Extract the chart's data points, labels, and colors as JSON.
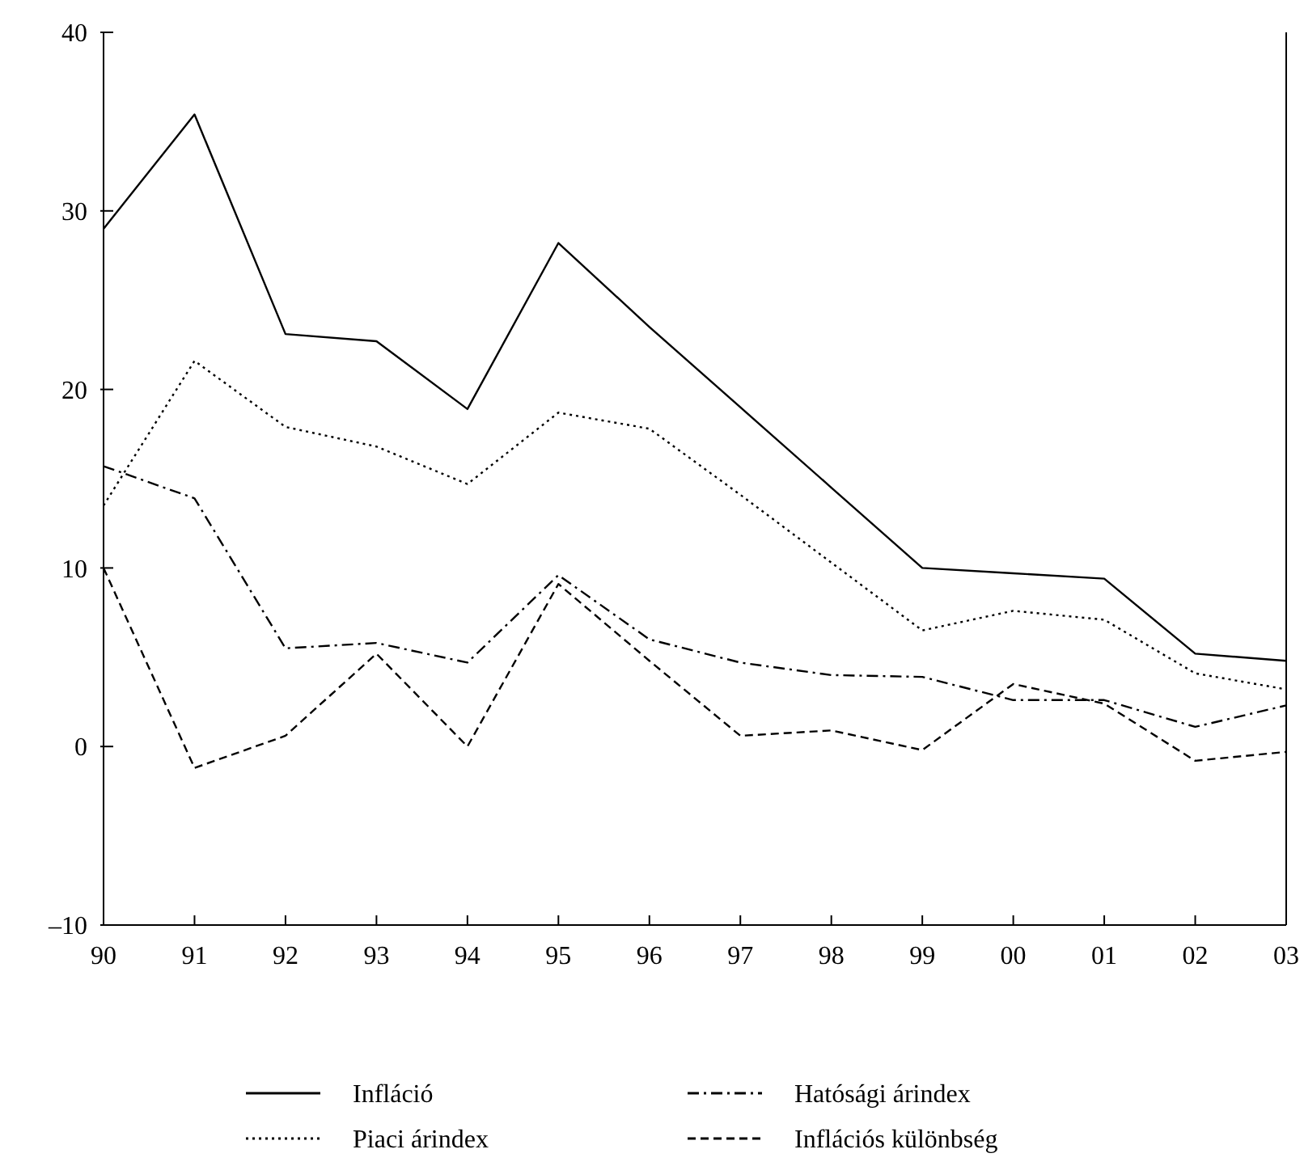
{
  "chart_data": {
    "type": "line",
    "categories": [
      "90",
      "91",
      "92",
      "93",
      "94",
      "95",
      "96",
      "97",
      "98",
      "99",
      "00",
      "01",
      "02",
      "03"
    ],
    "ylim": [
      -10,
      40
    ],
    "yticks": [
      {
        "value": -10,
        "label": "–10"
      },
      0,
      10,
      20,
      30,
      40
    ],
    "legend": "bottom",
    "grid": false,
    "series": [
      {
        "name": "Infláció",
        "color": "#000000",
        "line_style": "solid",
        "values": [
          29.0,
          35.4,
          23.1,
          22.7,
          18.9,
          28.2,
          23.5,
          19.0,
          14.5,
          10.0,
          9.7,
          9.4,
          5.2,
          4.8
        ]
      },
      {
        "name": "Piaci árindex",
        "color": "#000000",
        "line_style": "dotted",
        "values": [
          13.5,
          21.6,
          17.9,
          16.8,
          14.7,
          18.7,
          17.8,
          14.1,
          10.3,
          6.5,
          7.6,
          7.1,
          4.1,
          3.2
        ]
      },
      {
        "name": "Hatósági árindex",
        "color": "#000000",
        "line_style": "dashdot",
        "values": [
          15.7,
          13.9,
          5.5,
          5.8,
          4.7,
          9.6,
          6.0,
          4.7,
          4.0,
          3.9,
          2.6,
          2.6,
          1.1,
          2.3
        ]
      },
      {
        "name": "Inflációs különbség",
        "color": "#000000",
        "line_style": "dashed",
        "values": [
          10.0,
          -1.2,
          0.6,
          5.2,
          0.0,
          9.1,
          4.8,
          0.6,
          0.9,
          -0.2,
          3.5,
          2.4,
          -0.8,
          -0.3
        ]
      }
    ]
  }
}
